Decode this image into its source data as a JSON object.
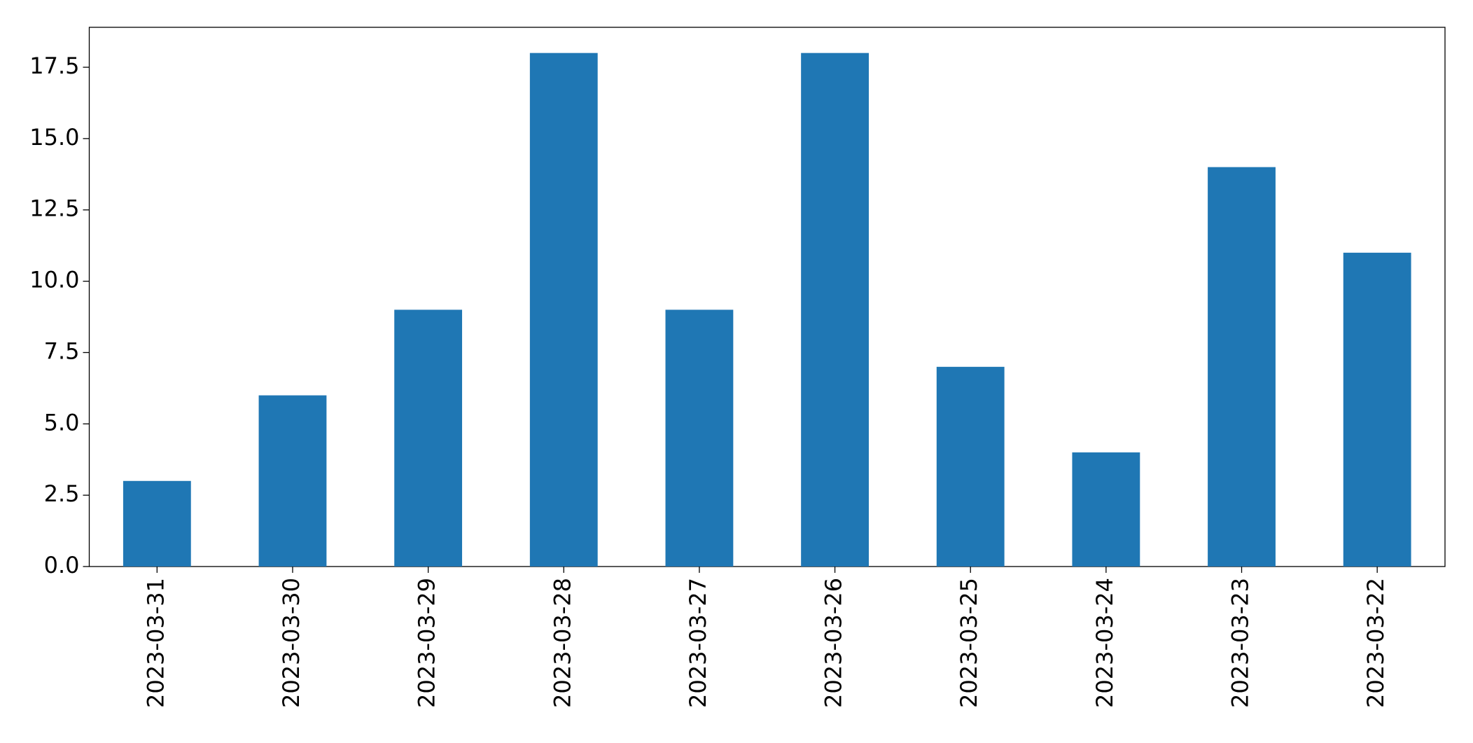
{
  "chart_data": {
    "type": "bar",
    "categories": [
      "2023-03-31",
      "2023-03-30",
      "2023-03-29",
      "2023-03-28",
      "2023-03-27",
      "2023-03-26",
      "2023-03-25",
      "2023-03-24",
      "2023-03-23",
      "2023-03-22"
    ],
    "values": [
      3,
      6,
      9,
      18,
      9,
      18,
      7,
      4,
      14,
      11
    ],
    "color": "#1f77b4",
    "ylim": [
      0,
      18.9
    ],
    "yticks": [
      {
        "value": 0,
        "label": "0.0"
      },
      2.5,
      {
        "value": 5,
        "label": "5.0"
      },
      7.5,
      {
        "value": 10,
        "label": "10.0"
      },
      12.5,
      {
        "value": 15,
        "label": "15.0"
      },
      17.5
    ],
    "grid": false
  }
}
